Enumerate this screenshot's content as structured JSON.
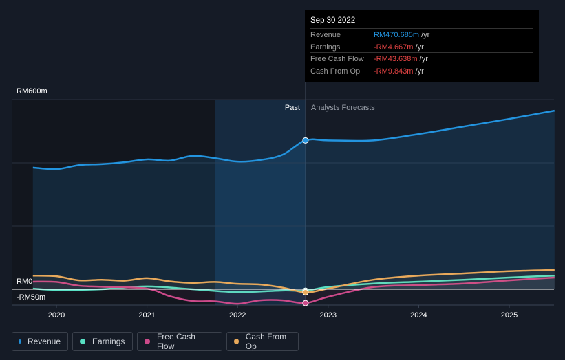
{
  "tooltip": {
    "date": "Sep 30 2022",
    "rows": [
      {
        "label": "Revenue",
        "value": "RM470.685m",
        "unit": "/yr",
        "color": "#2394df"
      },
      {
        "label": "Earnings",
        "value": "-RM4.667m",
        "unit": "/yr",
        "color": "#e64444"
      },
      {
        "label": "Free Cash Flow",
        "value": "-RM43.638m",
        "unit": "/yr",
        "color": "#e64444"
      },
      {
        "label": "Cash From Op",
        "value": "-RM9.843m",
        "unit": "/yr",
        "color": "#e64444"
      }
    ]
  },
  "chart_data": {
    "type": "line",
    "ylabel_top": "RM600m",
    "ylabel_zero": "RM0",
    "ylabel_bottom": "-RM50m",
    "ylim": [
      -50,
      600
    ],
    "xlim": [
      2019.5,
      2025.5
    ],
    "past_label": "Past",
    "forecast_label": "Analysts Forecasts",
    "divider_x": 2022.75,
    "xticks": [
      "2020",
      "2021",
      "2022",
      "2023",
      "2024",
      "2025"
    ],
    "series": [
      {
        "name": "Revenue",
        "color": "#2394df",
        "x": [
          2019.74,
          2020,
          2020.25,
          2020.5,
          2020.75,
          2021,
          2021.25,
          2021.5,
          2021.75,
          2022,
          2022.25,
          2022.5,
          2022.75,
          2023,
          2023.5,
          2024,
          2024.5,
          2025,
          2025.5
        ],
        "values": [
          385,
          380,
          393,
          396,
          402,
          411,
          407,
          422,
          415,
          404,
          409,
          426,
          471,
          471,
          471,
          491,
          515,
          539,
          565
        ]
      },
      {
        "name": "Earnings",
        "color": "#58e0c4",
        "x": [
          2019.74,
          2020,
          2020.5,
          2021,
          2021.5,
          2022,
          2022.5,
          2022.75,
          2023,
          2023.5,
          2024,
          2024.5,
          2025,
          2025.5
        ],
        "values": [
          2,
          -2,
          0,
          9,
          0,
          -9,
          -4,
          -4.667,
          7,
          18,
          24,
          30,
          37,
          43
        ]
      },
      {
        "name": "Free Cash Flow",
        "color": "#cc4a8a",
        "x": [
          2019.74,
          2020,
          2020.25,
          2020.5,
          2021,
          2021.25,
          2021.5,
          2021.75,
          2022,
          2022.25,
          2022.5,
          2022.75,
          2023,
          2023.5,
          2024,
          2024.5,
          2025,
          2025.5
        ],
        "values": [
          24,
          23,
          11,
          8,
          2,
          -22,
          -37,
          -38,
          -46,
          -35,
          -35,
          -43.638,
          -24,
          7,
          13,
          18,
          28,
          37
        ]
      },
      {
        "name": "Cash From Op",
        "color": "#e8a95b",
        "x": [
          2019.74,
          2020,
          2020.25,
          2020.5,
          2020.75,
          2021,
          2021.25,
          2021.5,
          2021.75,
          2022,
          2022.25,
          2022.5,
          2022.75,
          2023,
          2023.5,
          2024,
          2024.5,
          2025,
          2025.5
        ],
        "values": [
          43,
          41,
          28,
          30,
          27,
          35,
          25,
          20,
          23,
          17,
          15,
          5,
          -9.843,
          2,
          30,
          43,
          50,
          57,
          61
        ]
      }
    ]
  },
  "legend": [
    "Revenue",
    "Earnings",
    "Free Cash Flow",
    "Cash From Op"
  ]
}
